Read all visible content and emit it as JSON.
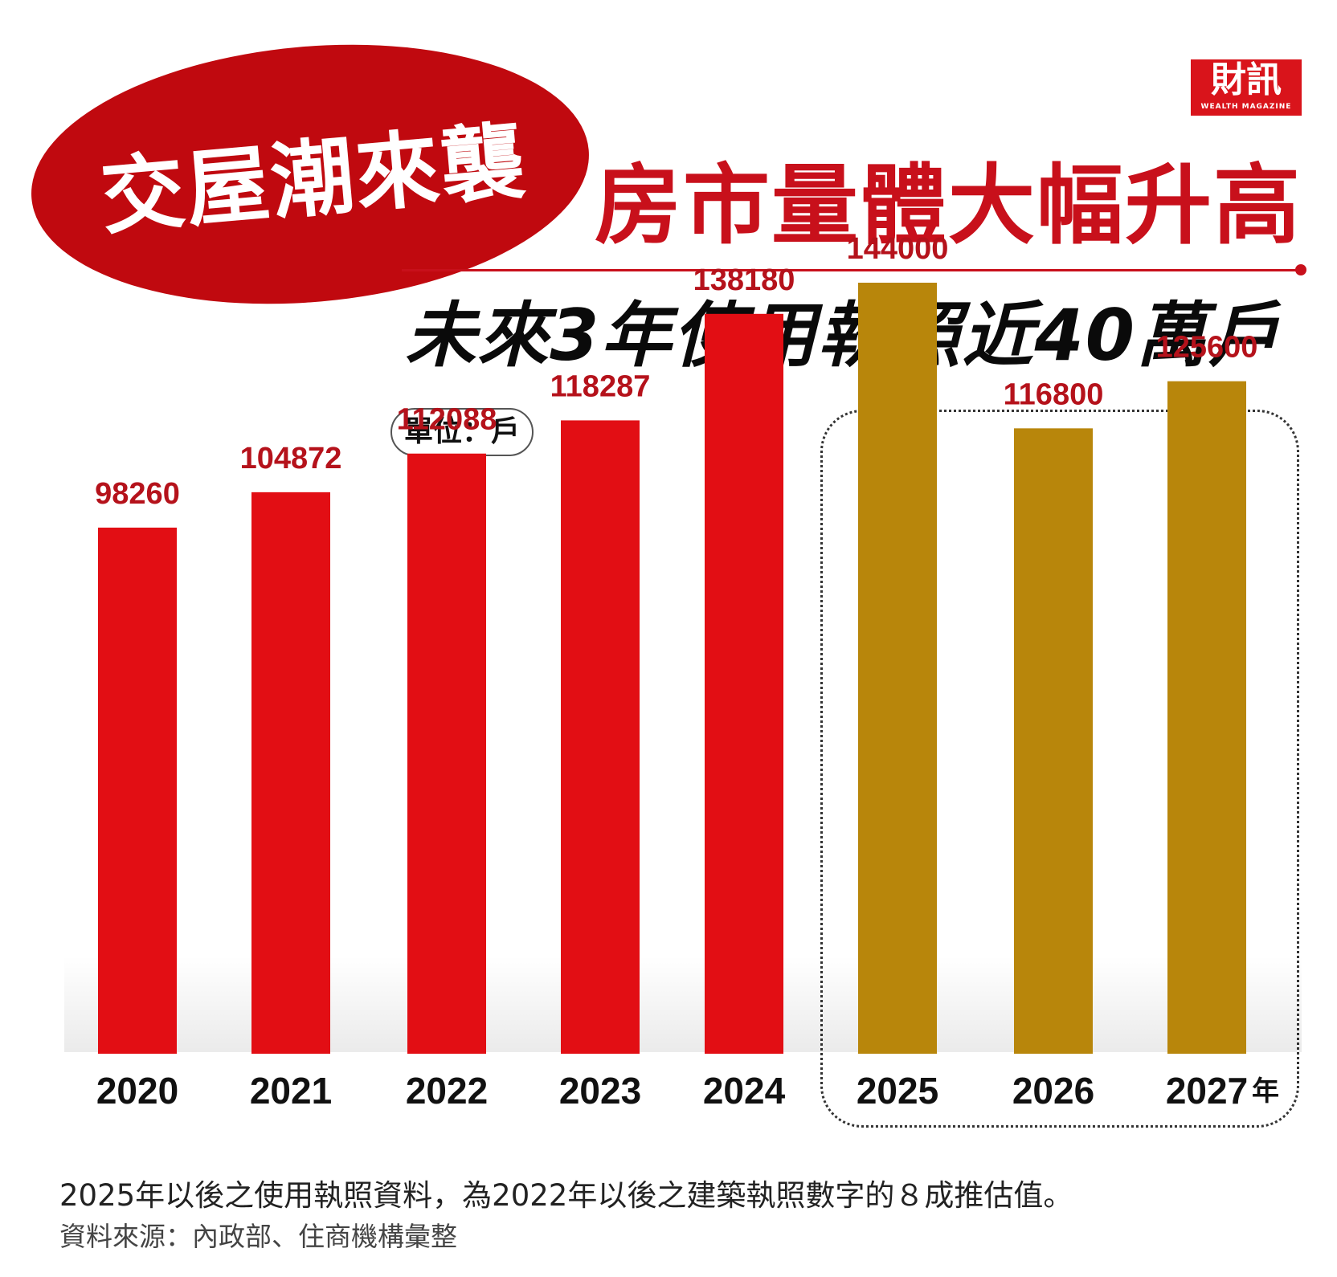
{
  "tag_text": "交屋潮來襲",
  "headline": "房市量體大幅升高",
  "subheadline": "未來3年使用執照近40萬戶",
  "logo": {
    "name": "財訊",
    "sub": "WEALTH MAGAZINE"
  },
  "unit_label": "單位：戶",
  "colors": {
    "actual": "#e20e14",
    "forecast": "#b8860b",
    "accent": "#c8101b"
  },
  "chart_data": {
    "type": "bar",
    "categories": [
      "2020",
      "2021",
      "2022",
      "2023",
      "2024",
      "2025",
      "2026",
      "2027"
    ],
    "values": [
      98260,
      104872,
      112088,
      118287,
      138180,
      144000,
      116800,
      125600
    ],
    "value_labels": [
      "98260",
      "104872",
      "112088",
      "118287",
      "138180",
      "144000",
      "116800",
      "125600"
    ],
    "forecast_from_index": 5,
    "x_unit_suffix": "年",
    "ylim": [
      0,
      150000
    ],
    "grid": false,
    "legend": "none"
  },
  "footnote": "2025年以後之使用執照資料，為2022年以後之建築執照數字的８成推估值。",
  "source": "資料來源：內政部、住商機構彙整"
}
